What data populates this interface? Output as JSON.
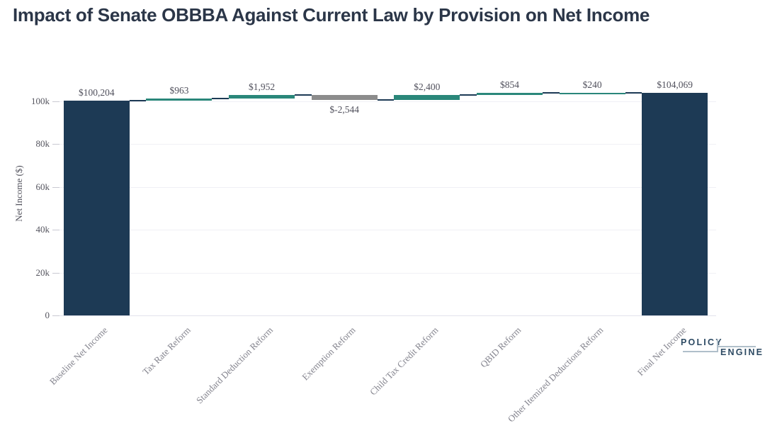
{
  "title": "Impact of Senate OBBBA Against Current Law by Provision on Net Income",
  "chart_data": {
    "type": "bar",
    "subtype": "waterfall",
    "title": "Impact of Senate OBBBA Against Current Law by Provision on Net Income",
    "categories": [
      "Baseline Net Income",
      "Tax Rate Reform",
      "Standard Deduction Reform",
      "Exemption Reform",
      "Child Tax Credit Reform",
      "QBID Reform",
      "Other Itemized Deductions Reform",
      "Final Net Income"
    ],
    "values": [
      100204,
      963,
      1952,
      -2544,
      2400,
      854,
      240,
      104069
    ],
    "measures": [
      "absolute",
      "relative",
      "relative",
      "relative",
      "relative",
      "relative",
      "relative",
      "total"
    ],
    "value_labels": [
      "$100,204",
      "$963",
      "$1,952",
      "$-2,544",
      "$2,400",
      "$854",
      "$240",
      "$104,069"
    ],
    "xlabel": "",
    "ylabel": "Net Income ($)",
    "ytick_values": [
      0,
      20000,
      40000,
      60000,
      80000,
      100000
    ],
    "ytick_labels": [
      "0",
      "20k",
      "40k",
      "60k",
      "80k",
      "100k"
    ],
    "ylim": [
      0,
      114000
    ],
    "grid": true,
    "legend": "none",
    "colors": {
      "increase": "#2a877a",
      "decrease": "#8c8c8c",
      "total": "#1d3a55",
      "connector": "#1d3a55"
    }
  },
  "branding": {
    "policy": "POLICY",
    "engine": "ENGINE"
  }
}
